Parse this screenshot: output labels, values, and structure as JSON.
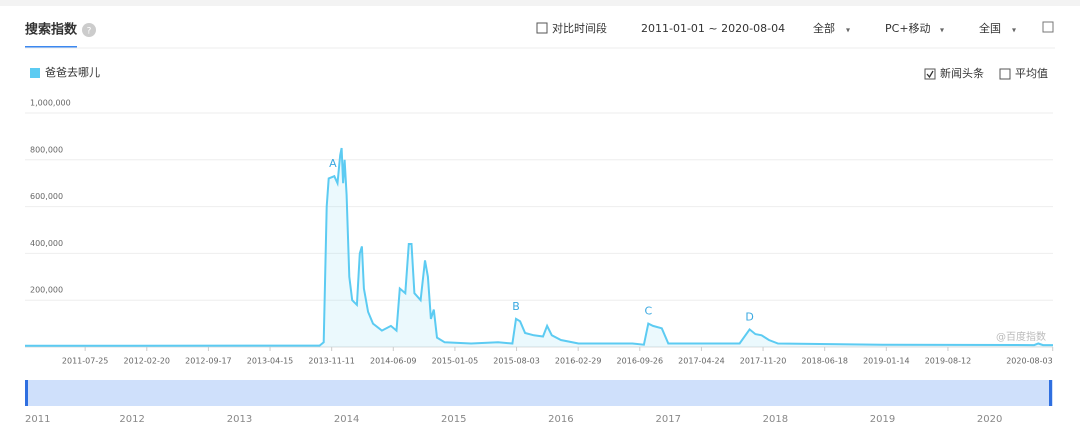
{
  "header": {
    "title": "搜索指数",
    "compare": "对比时间段",
    "date_range": "2011-01-01 ~ 2020-08-04",
    "options": [
      "全部",
      "PC+移动",
      "全国"
    ]
  },
  "legend_options": [
    {
      "text": "新闻头条",
      "checked": true
    },
    {
      "text": "平均值",
      "checked": false
    }
  ],
  "watermark": "@百度指数",
  "navigator": {
    "xlim": [
      "2011-01-01",
      "2020-08-04"
    ],
    "years": [
      "2011",
      "2012",
      "2013",
      "2014",
      "2015",
      "2016",
      "2017",
      "2018",
      "2019",
      "2020"
    ]
  },
  "chart_data": {
    "type": "line",
    "grid": true,
    "xlim": [
      "2011-01-01",
      "2020-08-04"
    ],
    "ylim": [
      0,
      1000000
    ],
    "yticks": [
      {
        "value": 200000,
        "label": "200,000"
      },
      {
        "value": 400000,
        "label": "400,000"
      },
      {
        "value": 600000,
        "label": "600,000"
      },
      {
        "value": 800000,
        "label": "800,000"
      },
      {
        "value": 1000000,
        "label": "1,000,000"
      }
    ],
    "xticks": [
      "2011-07-25",
      "2012-02-20",
      "2012-09-17",
      "2013-04-15",
      "2013-11-11",
      "2014-06-09",
      "2015-01-05",
      "2015-08-03",
      "2016-02-29",
      "2016-09-26",
      "2017-04-24",
      "2017-11-20",
      "2018-06-18",
      "2019-01-14",
      "2019-08-12",
      "2020-08-03"
    ],
    "x": [
      "2011-01-01",
      "2013-10-01",
      "2013-10-15",
      "2013-10-25",
      "2013-11-01",
      "2013-11-20",
      "2013-12-01",
      "2013-12-10",
      "2013-12-15",
      "2013-12-20",
      "2013-12-25",
      "2014-01-01",
      "2014-01-10",
      "2014-01-20",
      "2014-02-05",
      "2014-02-15",
      "2014-02-22",
      "2014-03-01",
      "2014-03-15",
      "2014-04-01",
      "2014-05-01",
      "2014-06-01",
      "2014-06-20",
      "2014-07-01",
      "2014-07-20",
      "2014-08-01",
      "2014-08-10",
      "2014-08-20",
      "2014-09-10",
      "2014-09-25",
      "2014-10-05",
      "2014-10-15",
      "2014-10-25",
      "2014-11-05",
      "2014-12-01",
      "2015-03-01",
      "2015-06-01",
      "2015-07-20",
      "2015-08-01",
      "2015-08-15",
      "2015-09-01",
      "2015-10-01",
      "2015-11-01",
      "2015-11-15",
      "2015-12-01",
      "2016-01-01",
      "2016-03-01",
      "2016-09-01",
      "2016-10-10",
      "2016-10-25",
      "2016-11-10",
      "2016-12-10",
      "2017-01-01",
      "2017-09-01",
      "2017-10-05",
      "2017-10-25",
      "2017-11-15",
      "2017-12-10",
      "2018-01-10",
      "2019-01-01",
      "2020-06-01",
      "2020-06-15",
      "2020-07-01",
      "2020-08-04"
    ],
    "series": [
      {
        "name": "爸爸去哪儿",
        "color": "#5ccbf2",
        "values": [
          5000,
          6000,
          20000,
          600000,
          720000,
          730000,
          700000,
          820000,
          850000,
          700000,
          800000,
          650000,
          300000,
          200000,
          180000,
          400000,
          430000,
          250000,
          150000,
          100000,
          70000,
          90000,
          70000,
          250000,
          230000,
          440000,
          440000,
          230000,
          200000,
          370000,
          300000,
          120000,
          160000,
          40000,
          20000,
          15000,
          20000,
          15000,
          120000,
          110000,
          60000,
          50000,
          45000,
          90000,
          50000,
          30000,
          15000,
          15000,
          10000,
          100000,
          90000,
          80000,
          15000,
          15000,
          75000,
          55000,
          50000,
          30000,
          15000,
          10000,
          8000,
          15000,
          8000,
          8000
        ]
      }
    ],
    "annotations": [
      {
        "text": "A",
        "x": "2013-11-15"
      },
      {
        "text": "B",
        "x": "2015-08-01"
      },
      {
        "text": "C",
        "x": "2016-10-25"
      },
      {
        "text": "D",
        "x": "2017-10-05"
      }
    ]
  }
}
